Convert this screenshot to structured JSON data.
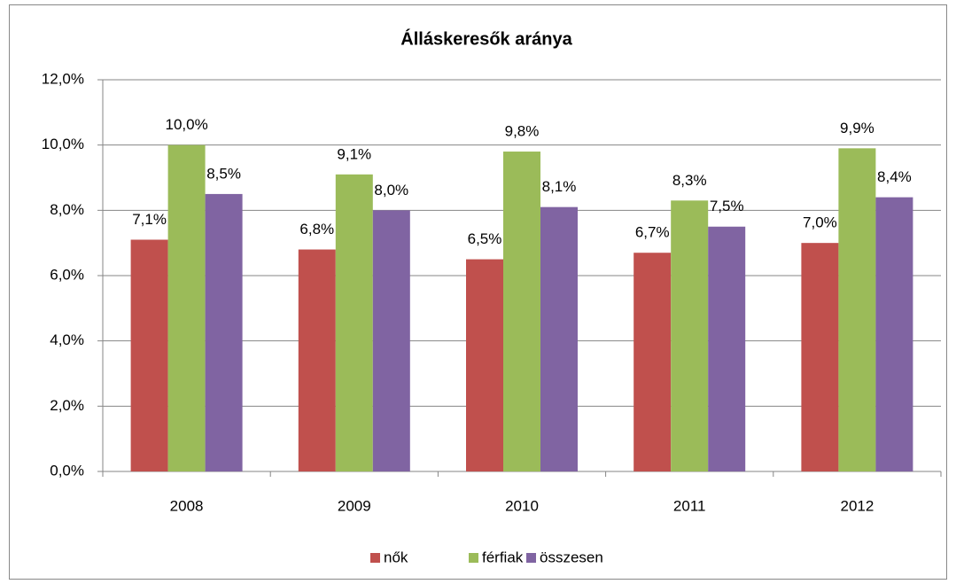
{
  "chart_data": {
    "type": "bar",
    "title": "Álláskeresők aránya",
    "categories": [
      "2008",
      "2009",
      "2010",
      "2011",
      "2012"
    ],
    "series": [
      {
        "name": "nők",
        "color": "#c0504d",
        "values": [
          7.1,
          6.8,
          6.5,
          6.7,
          7.0
        ],
        "value_labels": [
          "7,1%",
          "6,8%",
          "6,5%",
          "6,7%",
          "7,0%"
        ]
      },
      {
        "name": "férfiak",
        "color": "#9bbb59",
        "values": [
          10.0,
          9.1,
          9.8,
          8.3,
          9.9
        ],
        "value_labels": [
          "10,0%",
          "9,1%",
          "9,8%",
          "8,3%",
          "9,9%"
        ]
      },
      {
        "name": "összesen",
        "color": "#8064a2",
        "values": [
          8.5,
          8.0,
          8.1,
          7.5,
          8.4
        ],
        "value_labels": [
          "8,5%",
          "8,0%",
          "8,1%",
          "7,5%",
          "8,4%"
        ]
      }
    ],
    "ylim": [
      0,
      12
    ],
    "yticks": [
      {
        "value": 0,
        "label": "0,0%"
      },
      {
        "value": 2,
        "label": "2,0%"
      },
      {
        "value": 4,
        "label": "4,0%"
      },
      {
        "value": 6,
        "label": "6,0%"
      },
      {
        "value": 8,
        "label": "8,0%"
      },
      {
        "value": 10,
        "label": "10,0%"
      },
      {
        "value": 12,
        "label": "12,0%"
      }
    ],
    "grid": true,
    "legend": "bottom"
  }
}
